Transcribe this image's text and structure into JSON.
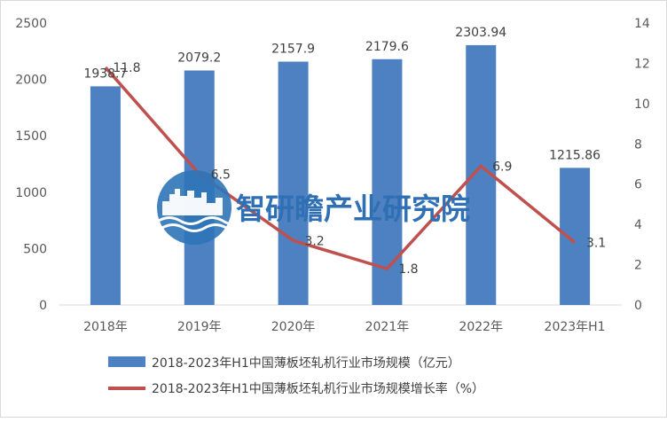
{
  "chart_data": {
    "type": "bar",
    "categories": [
      "2018年",
      "2019年",
      "2020年",
      "2021年",
      "2022年",
      "2023年H1"
    ],
    "series": [
      {
        "name": "2018-2023年H1中国薄板坯轧机行业市场规模（亿元）",
        "type": "bar",
        "axis": "left",
        "values": [
          1938.7,
          2079.2,
          2157.9,
          2179.6,
          2303.94,
          1215.86
        ],
        "labels": [
          "1938.7",
          "2079.2",
          "2157.9",
          "2179.6",
          "2303.94",
          "1215.86"
        ],
        "color": "#4e81c2"
      },
      {
        "name": "2018-2023年H1中国薄板坯轧机行业市场规模增长率（%）",
        "type": "line",
        "axis": "right",
        "values": [
          11.8,
          6.5,
          3.2,
          1.8,
          6.9,
          3.1
        ],
        "labels": [
          "11.8",
          "6.5",
          "3.2",
          "1.8",
          "6.9",
          "3.1"
        ],
        "color": "#c0504d"
      }
    ],
    "y_left": {
      "min": 0,
      "max": 2500,
      "ticks": [
        "0",
        "500",
        "1000",
        "1500",
        "2000",
        "2500"
      ]
    },
    "y_right": {
      "min": 0,
      "max": 14,
      "ticks": [
        "0",
        "2",
        "4",
        "6",
        "8",
        "10",
        "12",
        "14"
      ]
    },
    "grid": false,
    "legend_position": "bottom",
    "title": "",
    "xlabel": "",
    "ylabel": ""
  },
  "watermark": {
    "text": "智研瞻产业研究院",
    "logo_icon": "city-skyline-logo-icon",
    "color": "#2f6fb3"
  }
}
